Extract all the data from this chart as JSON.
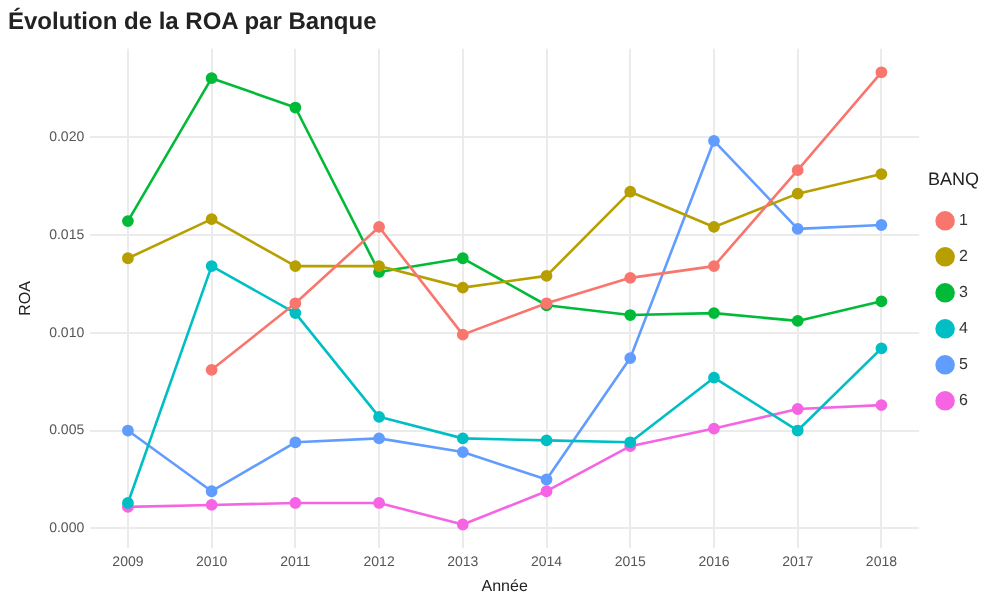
{
  "chart_data": {
    "type": "line",
    "title": "Évolution de la ROA par Banque",
    "xlabel": "Année",
    "ylabel": "ROA",
    "legend_title": "BANQ",
    "x": [
      2009,
      2010,
      2011,
      2012,
      2013,
      2014,
      2015,
      2016,
      2017,
      2018
    ],
    "series": [
      {
        "name": "1",
        "color": "#f8766d",
        "values": [
          null,
          0.0081,
          0.0115,
          0.0154,
          0.0099,
          0.0115,
          0.0128,
          0.0134,
          0.0183,
          0.0233
        ]
      },
      {
        "name": "2",
        "color": "#b79f00",
        "values": [
          0.0138,
          0.0158,
          0.0134,
          0.0134,
          0.0123,
          0.0129,
          0.0172,
          0.0154,
          0.0171,
          0.0181
        ]
      },
      {
        "name": "3",
        "color": "#00ba38",
        "values": [
          0.0157,
          0.023,
          0.0215,
          0.0131,
          0.0138,
          0.0114,
          0.0109,
          0.011,
          0.0106,
          0.0116
        ]
      },
      {
        "name": "4",
        "color": "#00bfc4",
        "values": [
          0.0013,
          0.0134,
          0.011,
          0.0057,
          0.0046,
          0.0045,
          0.0044,
          0.0077,
          0.005,
          0.0092
        ]
      },
      {
        "name": "5",
        "color": "#619cff",
        "values": [
          0.005,
          0.0019,
          0.0044,
          0.0046,
          0.0039,
          0.0025,
          0.0087,
          0.0198,
          0.0153,
          0.0155
        ]
      },
      {
        "name": "6",
        "color": "#f564e3",
        "values": [
          0.0011,
          0.0012,
          0.0013,
          0.0013,
          0.0002,
          0.0019,
          0.0042,
          0.0051,
          0.0061,
          0.0063
        ]
      }
    ],
    "xlim": [
      2008.55,
      2018.45
    ],
    "xticks": [
      2009,
      2010,
      2011,
      2012,
      2013,
      2014,
      2015,
      2016,
      2017,
      2018
    ],
    "ylim": [
      -0.001,
      0.0245
    ],
    "yticks": [
      {
        "value": 0,
        "label": "0.000"
      },
      {
        "value": 0.005,
        "label": "0.005"
      },
      {
        "value": 0.01,
        "label": "0.010"
      },
      {
        "value": 0.015,
        "label": "0.015"
      },
      {
        "value": 0.02,
        "label": "0.020"
      }
    ],
    "grid": true,
    "legend": "right",
    "marker": "circle",
    "line_style": "solid"
  }
}
